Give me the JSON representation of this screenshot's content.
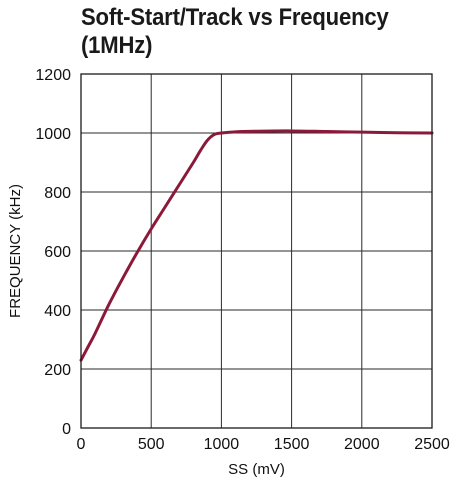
{
  "chart_data": {
    "type": "line",
    "title": "Soft-Start/Track vs Frequency (1MHz)",
    "title_lines": [
      "Soft-Start/Track vs Frequency",
      "(1MHz)"
    ],
    "xlabel": "SS (mV)",
    "ylabel": "FREQUENCY (kHz)",
    "xlim": [
      0,
      2500
    ],
    "ylim": [
      0,
      1200
    ],
    "x_ticks": [
      0,
      500,
      1000,
      1500,
      2000,
      2500
    ],
    "y_ticks": [
      0,
      200,
      400,
      600,
      800,
      1000,
      1200
    ],
    "grid": true,
    "legend": "none",
    "series": [
      {
        "color": "#8b1a3a",
        "x": [
          0,
          50,
          100,
          200,
          300,
          400,
          500,
          600,
          700,
          800,
          850,
          900,
          950,
          1000,
          1100,
          1250,
          1500,
          1750,
          2000,
          2250,
          2500
        ],
        "y": [
          230,
          275,
          320,
          420,
          510,
          595,
          675,
          750,
          825,
          900,
          940,
          975,
          995,
          1000,
          1004,
          1006,
          1007,
          1005,
          1003,
          1001,
          1000
        ]
      }
    ]
  }
}
